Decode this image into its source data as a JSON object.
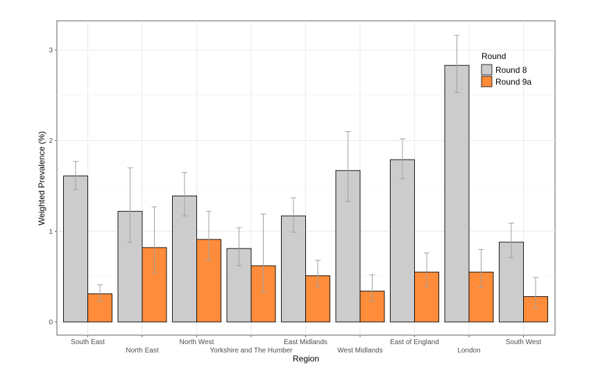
{
  "chart_data": {
    "type": "bar",
    "title": "",
    "xlabel": "Region",
    "ylabel": "Weighted Prevalence (%)",
    "ylim": [
      0,
      3.3
    ],
    "yticks": [
      0,
      1,
      2,
      3
    ],
    "grid": true,
    "legend": {
      "title": "Round",
      "placement": "top-right"
    },
    "categories": [
      "South East",
      "North East",
      "North West",
      "Yorkshire and The Humber",
      "East Midlands",
      "West Midlands",
      "East of England",
      "London",
      "South West"
    ],
    "series": [
      {
        "name": "Round 8",
        "color": "#cccccc",
        "values": [
          1.61,
          1.22,
          1.39,
          0.81,
          1.17,
          1.67,
          1.79,
          2.83,
          0.88
        ],
        "err_low": [
          1.46,
          0.88,
          1.17,
          0.62,
          0.99,
          1.33,
          1.58,
          2.53,
          0.71
        ],
        "err_high": [
          1.77,
          1.7,
          1.65,
          1.04,
          1.37,
          2.1,
          2.02,
          3.16,
          1.09
        ]
      },
      {
        "name": "Round 9a",
        "color": "#ff8c3a",
        "values": [
          0.31,
          0.82,
          0.91,
          0.62,
          0.51,
          0.34,
          0.55,
          0.55,
          0.28
        ],
        "err_low": [
          0.23,
          0.53,
          0.68,
          0.33,
          0.39,
          0.23,
          0.39,
          0.38,
          0.15
        ],
        "err_high": [
          0.41,
          1.27,
          1.22,
          1.19,
          0.68,
          0.52,
          0.76,
          0.8,
          0.49
        ]
      }
    ]
  }
}
